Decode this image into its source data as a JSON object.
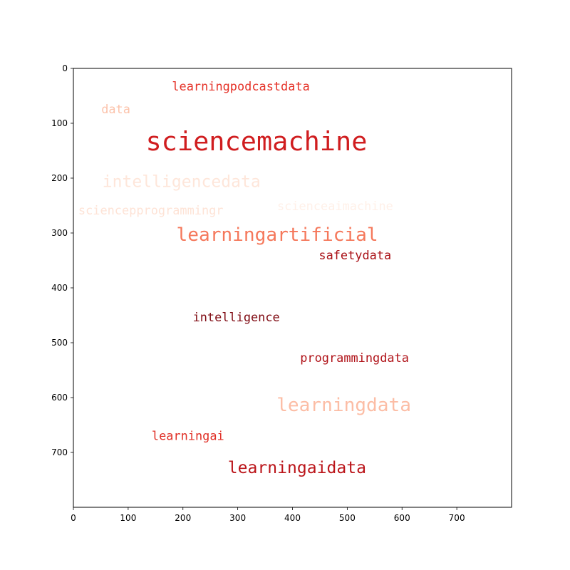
{
  "chart_data": {
    "type": "wordcloud",
    "title": "",
    "xlabel": "",
    "ylabel": "",
    "xlim": [
      0,
      800
    ],
    "ylim": [
      800,
      0
    ],
    "y_axis_inverted": true,
    "grid": false,
    "colormap": "Reds",
    "x_ticks": [
      "0",
      "100",
      "200",
      "300",
      "400",
      "500",
      "600",
      "700"
    ],
    "y_ticks": [
      "0",
      "100",
      "200",
      "300",
      "400",
      "500",
      "600",
      "700"
    ],
    "words": [
      {
        "text": "learningpodcastdata",
        "x": 180,
        "y": 23,
        "size": 22,
        "color": "#e53228"
      },
      {
        "text": "data",
        "x": 51,
        "y": 65,
        "size": 22,
        "color": "#fcc3ab"
      },
      {
        "text": "sciencemachine",
        "x": 132,
        "y": 112,
        "size": 48,
        "color": "#d01d1f"
      },
      {
        "text": "intelligencedata",
        "x": 53,
        "y": 193,
        "size": 30,
        "color": "#fee6da"
      },
      {
        "text": "sciencepprogrammingr",
        "x": 9,
        "y": 249,
        "size": 22,
        "color": "#fee3d6"
      },
      {
        "text": "scienceaimachine",
        "x": 372,
        "y": 241,
        "size": 22,
        "color": "#fff0e8"
      },
      {
        "text": "learningartificial",
        "x": 188,
        "y": 288,
        "size": 34,
        "color": "#f5785b"
      },
      {
        "text": "safetydata",
        "x": 448,
        "y": 331,
        "size": 22,
        "color": "#a91016"
      },
      {
        "text": "intelligence",
        "x": 218,
        "y": 444,
        "size": 22,
        "color": "#7f0a12"
      },
      {
        "text": "programmingdata",
        "x": 414,
        "y": 518,
        "size": 22,
        "color": "#b01218"
      },
      {
        "text": "learningdata",
        "x": 371,
        "y": 598,
        "size": 34,
        "color": "#fcbda5"
      },
      {
        "text": "learningai",
        "x": 143,
        "y": 660,
        "size": 22,
        "color": "#e02f26"
      },
      {
        "text": "learningaidata",
        "x": 282,
        "y": 714,
        "size": 30,
        "color": "#bb151a"
      }
    ]
  }
}
